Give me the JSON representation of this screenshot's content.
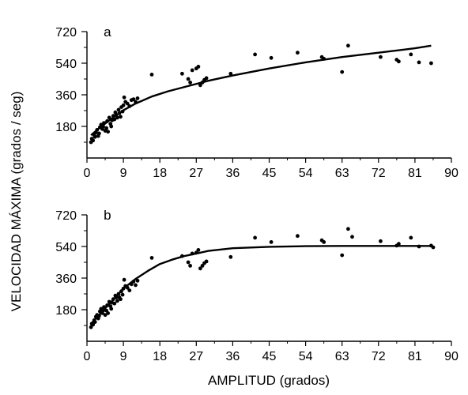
{
  "figure": {
    "ylabel": "VELOCIDAD MÁXIMA (grados / seg)",
    "xlabel": "AMPLITUD (grados)"
  },
  "chart_data": [
    {
      "type": "scatter",
      "panel_label": "a",
      "xlim": [
        0,
        90
      ],
      "ylim": [
        0,
        720
      ],
      "xticks": [
        "0",
        "9",
        "18",
        "27",
        "36",
        "45",
        "54",
        "63",
        "72",
        "81",
        "90"
      ],
      "yticks": [
        "180",
        "360",
        "540",
        "720"
      ],
      "series": [
        {
          "kind": "points",
          "points": [
            [
              1.0,
              90
            ],
            [
              1.2,
              110
            ],
            [
              1.5,
              100
            ],
            [
              1.8,
              130
            ],
            [
              2.0,
              120
            ],
            [
              2.2,
              145
            ],
            [
              2.5,
              160
            ],
            [
              2.8,
              125
            ],
            [
              3.0,
              140
            ],
            [
              3.2,
              175
            ],
            [
              3.5,
              190
            ],
            [
              3.8,
              165
            ],
            [
              4.0,
              180
            ],
            [
              4.2,
              200
            ],
            [
              4.5,
              155
            ],
            [
              4.8,
              170
            ],
            [
              5.0,
              210
            ],
            [
              5.2,
              150
            ],
            [
              5.5,
              230
            ],
            [
              5.8,
              195
            ],
            [
              6.0,
              180
            ],
            [
              6.2,
              215
            ],
            [
              6.5,
              240
            ],
            [
              6.8,
              220
            ],
            [
              7.0,
              260
            ],
            [
              7.2,
              245
            ],
            [
              7.5,
              230
            ],
            [
              7.8,
              275
            ],
            [
              8.0,
              255
            ],
            [
              8.3,
              235
            ],
            [
              8.5,
              290
            ],
            [
              8.8,
              265
            ],
            [
              9.0,
              300
            ],
            [
              9.2,
              345
            ],
            [
              9.5,
              320
            ],
            [
              10.0,
              310
            ],
            [
              10.5,
              295
            ],
            [
              11.0,
              330
            ],
            [
              11.5,
              335
            ],
            [
              12.0,
              320
            ],
            [
              12.5,
              340
            ],
            [
              16.0,
              475
            ],
            [
              23.5,
              480
            ],
            [
              25.0,
              450
            ],
            [
              25.5,
              430
            ],
            [
              26.0,
              500
            ],
            [
              27.0,
              510
            ],
            [
              27.5,
              520
            ],
            [
              28.0,
              415
            ],
            [
              28.5,
              430
            ],
            [
              29.0,
              445
            ],
            [
              29.5,
              455
            ],
            [
              35.5,
              480
            ],
            [
              41.5,
              590
            ],
            [
              45.5,
              570
            ],
            [
              52.0,
              600
            ],
            [
              58.0,
              575
            ],
            [
              58.5,
              565
            ],
            [
              63.0,
              490
            ],
            [
              64.5,
              640
            ],
            [
              72.5,
              575
            ],
            [
              76.5,
              560
            ],
            [
              77.0,
              550
            ],
            [
              80.0,
              590
            ],
            [
              82.0,
              545
            ],
            [
              85.0,
              540
            ]
          ]
        },
        {
          "kind": "fit_curve",
          "points": [
            [
              1,
              130
            ],
            [
              3,
              170
            ],
            [
              5,
              205
            ],
            [
              7,
              240
            ],
            [
              9,
              272
            ],
            [
              12,
              310
            ],
            [
              16,
              350
            ],
            [
              20,
              380
            ],
            [
              25,
              410
            ],
            [
              30,
              440
            ],
            [
              36,
              470
            ],
            [
              45,
              510
            ],
            [
              54,
              545
            ],
            [
              63,
              575
            ],
            [
              72,
              600
            ],
            [
              81,
              625
            ],
            [
              85,
              640
            ]
          ]
        }
      ]
    },
    {
      "type": "scatter",
      "panel_label": "b",
      "xlim": [
        0,
        90
      ],
      "ylim": [
        0,
        720
      ],
      "xticks": [
        "0",
        "9",
        "18",
        "27",
        "36",
        "45",
        "54",
        "63",
        "72",
        "81",
        "90"
      ],
      "yticks": [
        "180",
        "360",
        "540",
        "720"
      ],
      "series": [
        {
          "kind": "points",
          "points": [
            [
              1.0,
              80
            ],
            [
              1.2,
              100
            ],
            [
              1.5,
              95
            ],
            [
              1.8,
              120
            ],
            [
              2.0,
              110
            ],
            [
              2.2,
              140
            ],
            [
              2.5,
              150
            ],
            [
              2.8,
              130
            ],
            [
              3.0,
              145
            ],
            [
              3.2,
              170
            ],
            [
              3.5,
              185
            ],
            [
              3.8,
              160
            ],
            [
              4.0,
              175
            ],
            [
              4.2,
              195
            ],
            [
              4.5,
              150
            ],
            [
              4.8,
              175
            ],
            [
              5.0,
              205
            ],
            [
              5.2,
              160
            ],
            [
              5.5,
              225
            ],
            [
              5.8,
              200
            ],
            [
              6.0,
              185
            ],
            [
              6.2,
              220
            ],
            [
              6.5,
              240
            ],
            [
              6.8,
              215
            ],
            [
              7.0,
              260
            ],
            [
              7.2,
              250
            ],
            [
              7.5,
              230
            ],
            [
              7.8,
              270
            ],
            [
              8.0,
              250
            ],
            [
              8.3,
              240
            ],
            [
              8.5,
              285
            ],
            [
              8.8,
              265
            ],
            [
              9.0,
              300
            ],
            [
              9.2,
              350
            ],
            [
              9.5,
              315
            ],
            [
              10.0,
              305
            ],
            [
              10.5,
              290
            ],
            [
              11.0,
              325
            ],
            [
              11.5,
              340
            ],
            [
              12.0,
              320
            ],
            [
              12.5,
              345
            ],
            [
              16.0,
              475
            ],
            [
              23.5,
              485
            ],
            [
              25.0,
              450
            ],
            [
              25.5,
              430
            ],
            [
              26.0,
              500
            ],
            [
              27.0,
              505
            ],
            [
              27.5,
              520
            ],
            [
              28.0,
              415
            ],
            [
              28.5,
              430
            ],
            [
              29.0,
              445
            ],
            [
              29.5,
              455
            ],
            [
              35.5,
              480
            ],
            [
              41.5,
              590
            ],
            [
              45.5,
              565
            ],
            [
              52.0,
              600
            ],
            [
              58.0,
              575
            ],
            [
              58.5,
              565
            ],
            [
              63.0,
              490
            ],
            [
              64.5,
              640
            ],
            [
              65.5,
              595
            ],
            [
              72.5,
              570
            ],
            [
              76.5,
              545
            ],
            [
              77.0,
              555
            ],
            [
              80.0,
              590
            ],
            [
              82.0,
              540
            ],
            [
              85.0,
              545
            ],
            [
              85.5,
              535
            ]
          ]
        },
        {
          "kind": "fit_curve",
          "points": [
            [
              1,
              100
            ],
            [
              3,
              150
            ],
            [
              5,
              200
            ],
            [
              7,
              250
            ],
            [
              9,
              300
            ],
            [
              12,
              355
            ],
            [
              15,
              400
            ],
            [
              18,
              440
            ],
            [
              21,
              465
            ],
            [
              24,
              485
            ],
            [
              27,
              500
            ],
            [
              30,
              515
            ],
            [
              36,
              530
            ],
            [
              45,
              538
            ],
            [
              54,
              542
            ],
            [
              63,
              543
            ],
            [
              72,
              543
            ],
            [
              81,
              543
            ],
            [
              85,
              543
            ]
          ]
        }
      ]
    }
  ]
}
